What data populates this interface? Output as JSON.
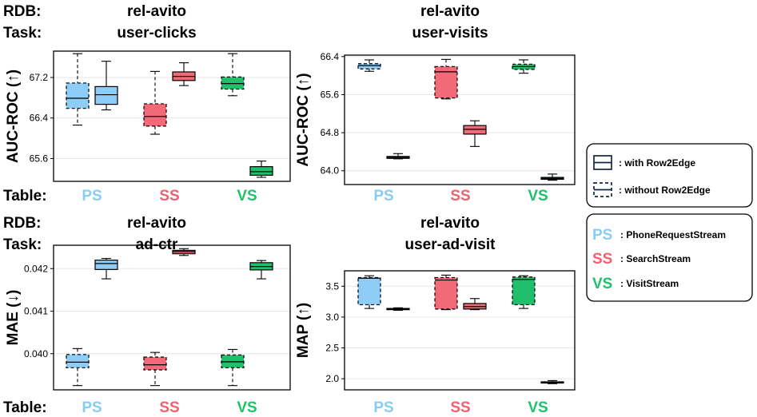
{
  "labels": {
    "rdb_prefix": "RDB:",
    "task_prefix": "Task:",
    "table_prefix": "Table:"
  },
  "colors": {
    "PS": "#87cdf3",
    "SS": "#f0606e",
    "VS": "#1ec26a",
    "box_PS": "#8ecdf8",
    "box_SS": "#f26a78",
    "box_VS": "#1fbf6b"
  },
  "legend": {
    "style_items": [
      {
        "style": "solid",
        "text": ": with Row2Edge"
      },
      {
        "style": "dashed",
        "text": ": without Row2Edge"
      }
    ],
    "table_items": [
      {
        "abbr": "PS",
        "text": ": PhoneRequestStream",
        "color_key": "PS"
      },
      {
        "abbr": "SS",
        "text": ": SearchStream",
        "color_key": "SS"
      },
      {
        "abbr": "VS",
        "text": ": VisitStream",
        "color_key": "VS"
      }
    ]
  },
  "chart_data": [
    {
      "type": "box",
      "rdb": "rel-avito",
      "task": "user-clicks",
      "ylabel": "AUC-ROC (↑)",
      "ylim": [
        65.15,
        67.72
      ],
      "yticks": [
        65.6,
        66.4,
        67.2
      ],
      "ytick_labels": [
        "65.6",
        "66.4",
        "67.2"
      ],
      "categories": [
        "PS",
        "SS",
        "VS"
      ],
      "groups": [
        {
          "table": "PS",
          "boxes": [
            {
              "variant": "without",
              "min": 66.26,
              "q1": 66.59,
              "median": 66.79,
              "q3": 67.09,
              "max": 67.67
            },
            {
              "variant": "with",
              "min": 66.56,
              "q1": 66.67,
              "median": 66.86,
              "q3": 67.02,
              "max": 67.52
            }
          ]
        },
        {
          "table": "SS",
          "boxes": [
            {
              "variant": "without",
              "min": 66.08,
              "q1": 66.24,
              "median": 66.43,
              "q3": 66.68,
              "max": 67.32
            },
            {
              "variant": "with",
              "min": 67.04,
              "q1": 67.14,
              "median": 67.22,
              "q3": 67.31,
              "max": 67.49
            }
          ]
        },
        {
          "table": "VS",
          "boxes": [
            {
              "variant": "without",
              "min": 66.84,
              "q1": 66.97,
              "median": 67.08,
              "q3": 67.21,
              "max": 67.67
            },
            {
              "variant": "with",
              "min": 65.23,
              "q1": 65.27,
              "median": 65.34,
              "q3": 65.44,
              "max": 65.55
            }
          ]
        }
      ]
    },
    {
      "type": "box",
      "rdb": "rel-avito",
      "task": "user-visits",
      "ylabel": "AUC-ROC (↑)",
      "ylim": [
        63.71,
        66.43
      ],
      "yticks": [
        64.0,
        64.8,
        65.6,
        66.4
      ],
      "ytick_labels": [
        "64.0",
        "64.8",
        "65.6",
        "66.4"
      ],
      "categories": [
        "PS",
        "SS",
        "VS"
      ],
      "groups": [
        {
          "table": "PS",
          "boxes": [
            {
              "variant": "without",
              "min": 66.09,
              "q1": 66.14,
              "median": 66.21,
              "q3": 66.25,
              "max": 66.33
            },
            {
              "variant": "with",
              "min": 64.25,
              "q1": 64.26,
              "median": 64.28,
              "q3": 64.3,
              "max": 64.36
            }
          ]
        },
        {
          "table": "SS",
          "boxes": [
            {
              "variant": "without",
              "min": 65.51,
              "q1": 65.53,
              "median": 66.08,
              "q3": 66.19,
              "max": 66.34
            },
            {
              "variant": "with",
              "min": 64.51,
              "q1": 64.77,
              "median": 64.87,
              "q3": 64.95,
              "max": 65.05
            }
          ]
        },
        {
          "table": "VS",
          "boxes": [
            {
              "variant": "without",
              "min": 66.05,
              "q1": 66.13,
              "median": 66.19,
              "q3": 66.24,
              "max": 66.33
            },
            {
              "variant": "with",
              "min": 63.8,
              "q1": 63.82,
              "median": 63.84,
              "q3": 63.86,
              "max": 63.93
            }
          ]
        }
      ]
    },
    {
      "type": "box",
      "rdb": "rel-avito",
      "task": "ad-ctr",
      "ylabel": "MAE (↓)",
      "ylim": [
        0.03915,
        0.04255
      ],
      "yticks": [
        0.04,
        0.041,
        0.042
      ],
      "ytick_labels": [
        "0.040",
        "0.041",
        "0.042"
      ],
      "categories": [
        "PS",
        "SS",
        "VS"
      ],
      "groups": [
        {
          "table": "PS",
          "boxes": [
            {
              "variant": "without",
              "min": 0.03925,
              "q1": 0.03967,
              "median": 0.0398,
              "q3": 0.03998,
              "max": 0.04012
            },
            {
              "variant": "with",
              "min": 0.04176,
              "q1": 0.04198,
              "median": 0.04212,
              "q3": 0.0422,
              "max": 0.04224
            }
          ]
        },
        {
          "table": "SS",
          "boxes": [
            {
              "variant": "without",
              "min": 0.03925,
              "q1": 0.03962,
              "median": 0.03974,
              "q3": 0.03992,
              "max": 0.04003
            },
            {
              "variant": "with",
              "min": 0.04231,
              "q1": 0.04235,
              "median": 0.0424,
              "q3": 0.04243,
              "max": 0.04247
            }
          ]
        },
        {
          "table": "VS",
          "boxes": [
            {
              "variant": "without",
              "min": 0.03925,
              "q1": 0.03967,
              "median": 0.03981,
              "q3": 0.03997,
              "max": 0.0401
            },
            {
              "variant": "with",
              "min": 0.04176,
              "q1": 0.04197,
              "median": 0.04205,
              "q3": 0.04214,
              "max": 0.04219
            }
          ]
        }
      ]
    },
    {
      "type": "box",
      "rdb": "rel-avito",
      "task": "user-ad-visit",
      "ylabel": "MAP (↑)",
      "ylim": [
        1.82,
        3.75
      ],
      "yticks": [
        2.0,
        2.5,
        3.0,
        3.5
      ],
      "ytick_labels": [
        "2.0",
        "2.5",
        "3.0",
        "3.5"
      ],
      "categories": [
        "PS",
        "SS",
        "VS"
      ],
      "groups": [
        {
          "table": "PS",
          "boxes": [
            {
              "variant": "without",
              "min": 3.14,
              "q1": 3.2,
              "median": 3.63,
              "q3": 3.64,
              "max": 3.67
            },
            {
              "variant": "with",
              "min": 3.11,
              "q1": 3.12,
              "median": 3.13,
              "q3": 3.14,
              "max": 3.15
            }
          ]
        },
        {
          "table": "SS",
          "boxes": [
            {
              "variant": "without",
              "min": 3.12,
              "q1": 3.13,
              "median": 3.6,
              "q3": 3.64,
              "max": 3.68
            },
            {
              "variant": "with",
              "min": 3.12,
              "q1": 3.13,
              "median": 3.17,
              "q3": 3.22,
              "max": 3.3
            }
          ]
        },
        {
          "table": "VS",
          "boxes": [
            {
              "variant": "without",
              "min": 3.14,
              "q1": 3.2,
              "median": 3.61,
              "q3": 3.65,
              "max": 3.67
            },
            {
              "variant": "with",
              "min": 1.92,
              "q1": 1.93,
              "median": 1.94,
              "q3": 1.95,
              "max": 1.97
            }
          ]
        }
      ]
    }
  ]
}
